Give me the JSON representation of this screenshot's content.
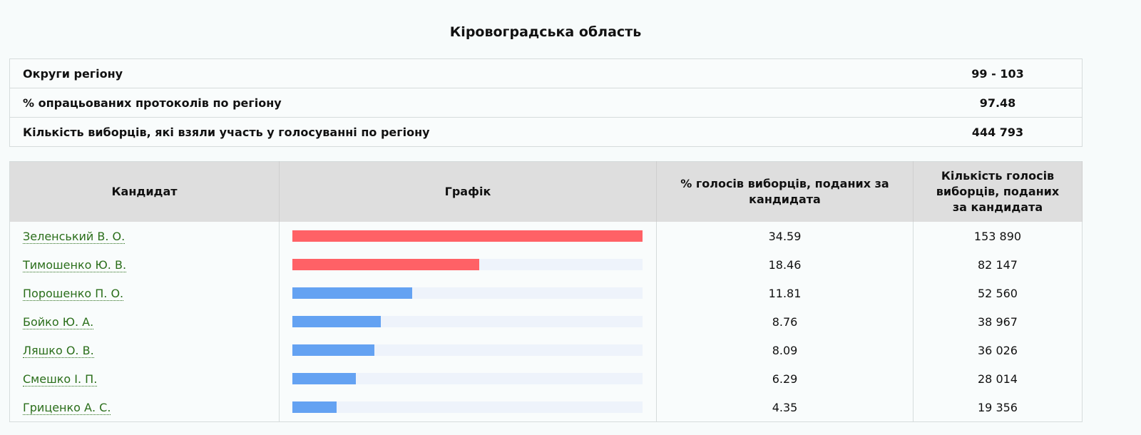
{
  "title": "Кіровоградська область",
  "summary": [
    {
      "label": "Округи регіону",
      "value": "99 - 103"
    },
    {
      "label": "% опрацьованих протоколів по регіону",
      "value": "97.48"
    },
    {
      "label": "Кількість виборців, які взяли участь у голосуванні по регіону",
      "value": "444 793"
    }
  ],
  "headers": {
    "candidate": "Кандидат",
    "chart": "Графік",
    "percent": "% голосів виборців, поданих за кандидата",
    "count": "Кількість голосів виборців, поданих за кандидата"
  },
  "colors": {
    "top": "#ff6166",
    "other": "#64a2f2",
    "track": "#eef3fb"
  },
  "candidates": [
    {
      "name": "Зеленський В. О.",
      "percent": "34.59",
      "votes": "153 890",
      "top": true
    },
    {
      "name": "Тимошенко Ю. В.",
      "percent": "18.46",
      "votes": "82 147",
      "top": true
    },
    {
      "name": "Порошенко П. О.",
      "percent": "11.81",
      "votes": "52 560",
      "top": false
    },
    {
      "name": "Бойко Ю. А.",
      "percent": "8.76",
      "votes": "38 967",
      "top": false
    },
    {
      "name": "Ляшко О. В.",
      "percent": "8.09",
      "votes": "36 026",
      "top": false
    },
    {
      "name": "Смешко І. П.",
      "percent": "6.29",
      "votes": "28 014",
      "top": false
    },
    {
      "name": "Гриценко А. С.",
      "percent": "4.35",
      "votes": "19 356",
      "top": false
    }
  ]
}
